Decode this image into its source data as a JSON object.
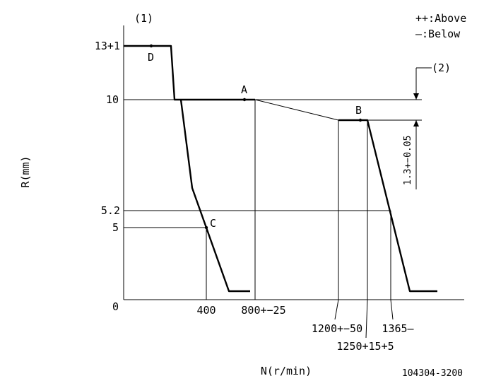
{
  "diagram": {
    "reference_number": "104304-3200",
    "markers": {
      "label_1": "(1)",
      "label_2": "(2)"
    },
    "legend": {
      "above": "++:Above",
      "below": "—:Below"
    },
    "axes": {
      "x_label": "N(r/min)",
      "y_label": "R(mm)"
    },
    "y_ticks": {
      "t13": "13+1",
      "t10": "10",
      "t52": "5.2",
      "t5": "5",
      "t0": "0"
    },
    "x_ticks": {
      "t400": "400",
      "t800": "800+−25",
      "t1200": "1200+−50",
      "t1250": "1250+15+5",
      "t1365": "1365—"
    },
    "points": {
      "A": "A",
      "B": "B",
      "C": "C",
      "D": "D"
    },
    "dimension": "1.3+−0.05"
  },
  "colors": {
    "line": "#000000",
    "background": "#ffffff"
  }
}
